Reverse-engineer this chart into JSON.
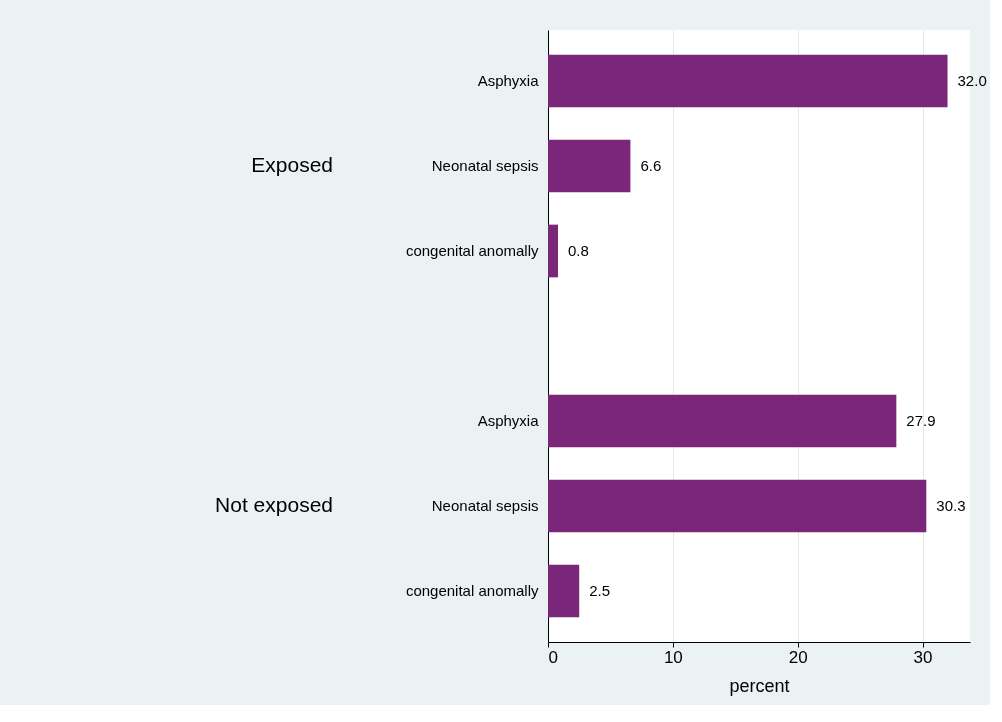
{
  "chart_data": {
    "type": "bar",
    "orientation": "horizontal",
    "xlabel": "percent",
    "categories": [
      "Asphyxia",
      "Neonatal sepsis",
      "congenital anomally",
      "Asphyxia",
      "Neonatal sepsis",
      "congenital anomally"
    ],
    "values": [
      32.0,
      6.6,
      0.8,
      27.9,
      30.3,
      2.5
    ],
    "color": "#7b2779",
    "annotations": [
      "Exposed",
      "Not exposed"
    ],
    "value_labels": [
      "32.0",
      "6.6",
      "0.8",
      "27.9",
      "30.3",
      "2.5"
    ],
    "xlim": [
      0,
      33.8
    ],
    "xticks": [
      0,
      10,
      20,
      30
    ],
    "grid": "x"
  }
}
